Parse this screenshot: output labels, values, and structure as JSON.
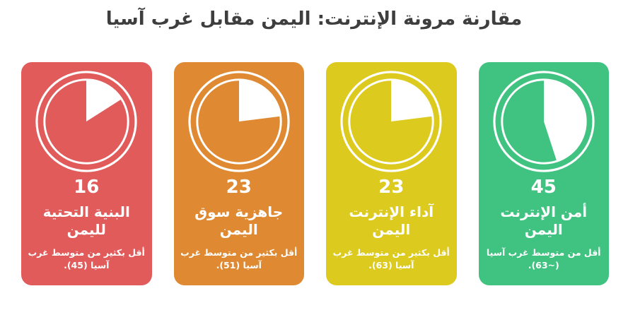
{
  "page": {
    "title": "مقارنة مرونة الإنترنت: اليمن مقابل غرب آسيا",
    "title_color": "#3e3e3e",
    "background_color": "#ffffff",
    "text_color_on_cards": "#ffffff"
  },
  "cards": [
    {
      "id": "infrastructure",
      "value": 16,
      "value_label": "16",
      "title": "البنية التحتية\nلليمن",
      "note": "أقل بكثير من متوسط غرب\nآسيا (45).",
      "west_asia_average": "45",
      "color": "#e25b5b"
    },
    {
      "id": "market-readiness",
      "value": 23,
      "value_label": "23",
      "title": "جاهزية سوق\nاليمن",
      "note": "أقل بكثير من متوسط غرب\nآسيا (51).",
      "west_asia_average": "51",
      "color": "#df8a33"
    },
    {
      "id": "internet-performance",
      "value": 23,
      "value_label": "23",
      "title": "آداء الإنترنت\nاليمن",
      "note": "أقل بكثير من متوسط غرب\nآسيا (63).",
      "west_asia_average": "63",
      "color": "#ddca1e"
    },
    {
      "id": "internet-security",
      "value": 45,
      "value_label": "45",
      "title": "أمن الإنترنت\nاليمن",
      "note": "أقل من متوسط غرب آسيا\n(~63).",
      "west_asia_average": "~63",
      "color": "#40c381"
    }
  ],
  "chart_data": {
    "type": "pie",
    "title": "مقارنة مرونة الإنترنت: اليمن مقابل غرب آسيا",
    "scale": [
      0,
      100
    ],
    "legend_position": "none",
    "charts": [
      {
        "label": "البنية التحتية لليمن",
        "yemen_score": 16,
        "west_asia_average": 45,
        "slices": [
          16,
          84
        ],
        "slice_colors": [
          "#ffffff",
          "#e25b5b"
        ],
        "annotation": "أقل بكثير من متوسط غرب آسيا (45)."
      },
      {
        "label": "جاهزية سوق اليمن",
        "yemen_score": 23,
        "west_asia_average": 51,
        "slices": [
          23,
          77
        ],
        "slice_colors": [
          "#ffffff",
          "#df8a33"
        ],
        "annotation": "أقل بكثير من متوسط غرب آسيا (51)."
      },
      {
        "label": "آداء الإنترنت اليمن",
        "yemen_score": 23,
        "west_asia_average": 63,
        "slices": [
          23,
          77
        ],
        "slice_colors": [
          "#ffffff",
          "#ddca1e"
        ],
        "annotation": "أقل بكثير من متوسط غرب آسيا (63)."
      },
      {
        "label": "أمن الإنترنت اليمن",
        "yemen_score": 45,
        "west_asia_average": "~63",
        "slices": [
          45,
          55
        ],
        "slice_colors": [
          "#ffffff",
          "#40c381"
        ],
        "annotation": "أقل من متوسط غرب آسيا (~63)."
      }
    ]
  }
}
